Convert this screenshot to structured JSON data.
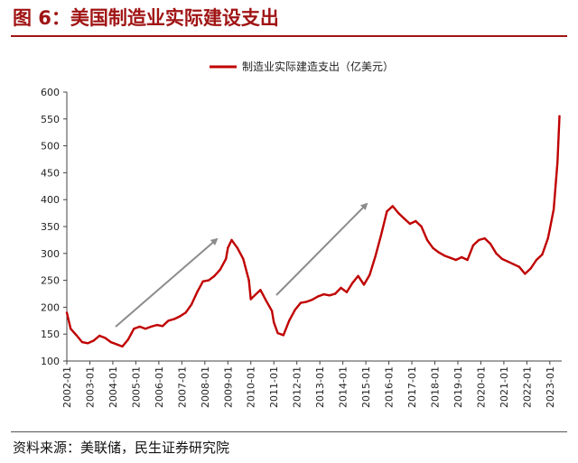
{
  "figure_title": "图 6：美国制造业实际建设支出",
  "source": "资料来源：美联储，民生证券研究院",
  "colors": {
    "series": "#c00000",
    "arrow": "#8c8c8c",
    "title": "#a01414"
  },
  "chart_data": {
    "type": "line",
    "title": "",
    "xlabel": "",
    "ylabel": "",
    "ylim": [
      100,
      600
    ],
    "yticks": [
      100,
      150,
      200,
      250,
      300,
      350,
      400,
      450,
      500,
      550,
      600
    ],
    "xticks": [
      "2002-01",
      "2003-01",
      "2004-01",
      "2005-01",
      "2006-01",
      "2007-01",
      "2008-01",
      "2009-01",
      "2010-01",
      "2011-01",
      "2012-01",
      "2013-01",
      "2014-01",
      "2015-01",
      "2016-01",
      "2017-01",
      "2018-01",
      "2019-01",
      "2020-01",
      "2021-01",
      "2022-01",
      "2023-01"
    ],
    "grid": false,
    "legend": "top",
    "series": [
      {
        "name": "制造业实际建造支出（亿美元）",
        "x": [
          "2002-01",
          "2002-03",
          "2002-06",
          "2002-09",
          "2002-12",
          "2003-03",
          "2003-06",
          "2003-09",
          "2003-12",
          "2004-03",
          "2004-06",
          "2004-09",
          "2004-12",
          "2005-03",
          "2005-06",
          "2005-09",
          "2005-12",
          "2006-03",
          "2006-06",
          "2006-09",
          "2006-12",
          "2007-03",
          "2007-06",
          "2007-09",
          "2007-12",
          "2008-03",
          "2008-06",
          "2008-09",
          "2008-12",
          "2009-01",
          "2009-03",
          "2009-06",
          "2009-09",
          "2009-12",
          "2010-01",
          "2010-03",
          "2010-06",
          "2010-09",
          "2010-12",
          "2011-01",
          "2011-03",
          "2011-06",
          "2011-09",
          "2011-12",
          "2012-03",
          "2012-06",
          "2012-09",
          "2012-12",
          "2013-03",
          "2013-06",
          "2013-09",
          "2013-12",
          "2014-03",
          "2014-06",
          "2014-09",
          "2014-12",
          "2015-03",
          "2015-06",
          "2015-09",
          "2015-12",
          "2016-03",
          "2016-06",
          "2016-09",
          "2016-12",
          "2017-03",
          "2017-06",
          "2017-09",
          "2017-12",
          "2018-03",
          "2018-06",
          "2018-09",
          "2018-12",
          "2019-03",
          "2019-06",
          "2019-09",
          "2019-12",
          "2020-03",
          "2020-06",
          "2020-09",
          "2020-12",
          "2021-03",
          "2021-06",
          "2021-09",
          "2021-12",
          "2022-03",
          "2022-06",
          "2022-09",
          "2022-12",
          "2023-01",
          "2023-03",
          "2023-05",
          "2023-06"
        ],
        "values": [
          190,
          160,
          148,
          135,
          133,
          138,
          147,
          143,
          135,
          131,
          127,
          140,
          160,
          164,
          160,
          164,
          167,
          165,
          175,
          178,
          183,
          190,
          205,
          228,
          248,
          250,
          258,
          270,
          290,
          310,
          325,
          310,
          290,
          250,
          215,
          222,
          232,
          212,
          193,
          172,
          152,
          148,
          175,
          195,
          208,
          210,
          214,
          220,
          224,
          222,
          225,
          236,
          228,
          245,
          258,
          242,
          260,
          295,
          335,
          378,
          388,
          375,
          365,
          355,
          360,
          350,
          325,
          310,
          302,
          296,
          292,
          288,
          293,
          288,
          315,
          325,
          328,
          318,
          300,
          290,
          285,
          280,
          275,
          262,
          272,
          288,
          298,
          328,
          345,
          382,
          470,
          555
        ]
      }
    ]
  }
}
